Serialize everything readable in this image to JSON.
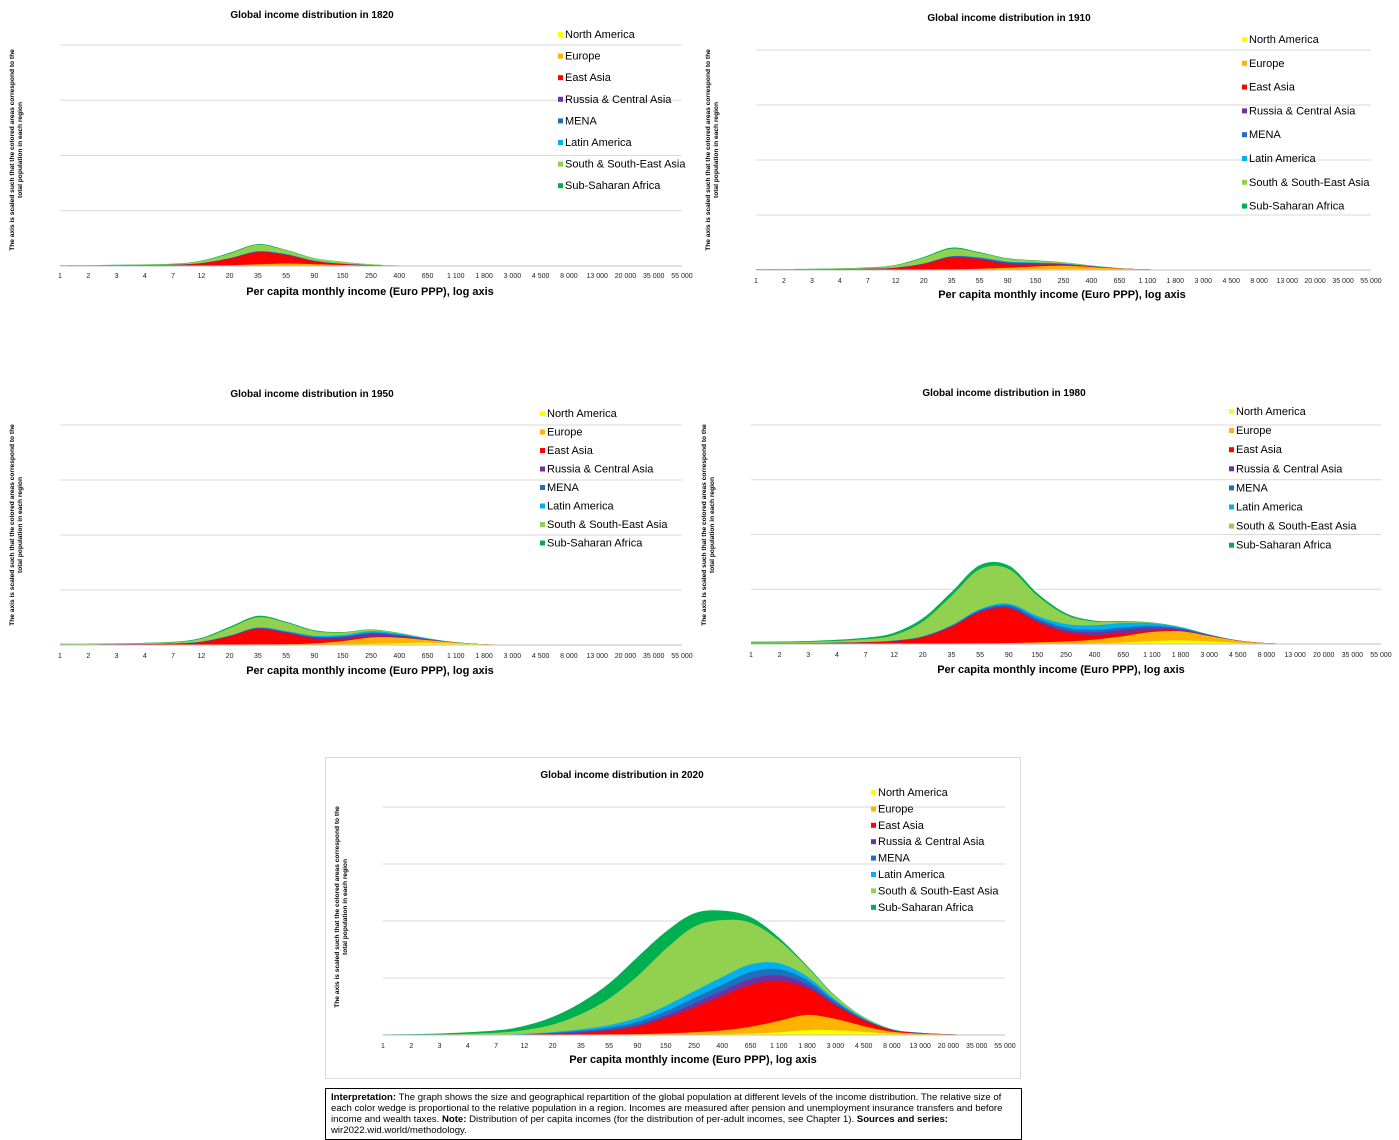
{
  "colors": {
    "North America": "#ffff00",
    "Europe": "#ffb300",
    "East Asia": "#ff0000",
    "Russia & Central Asia": "#7030a0",
    "MENA": "#1f6fbf",
    "Latin America": "#00b0f0",
    "South & South-East Asia": "#92d050",
    "Sub-Saharan Africa": "#00b050"
  },
  "legend": [
    "North America",
    "Europe",
    "East Asia",
    "Russia & Central Asia",
    "MENA",
    "Latin America",
    "South & South-East Asia",
    "Sub-Saharan Africa"
  ],
  "common": {
    "ylabel_line1": "The axis is scaled such that the colored areas correspond to the",
    "ylabel_line2": "total population in each region",
    "xlabel": "Per capita monthly income (Euro PPP), log axis",
    "ticks": [
      "1",
      "2",
      "3",
      "4",
      "7",
      "12",
      "20",
      "35",
      "55",
      "90",
      "150",
      "250",
      "400",
      "650",
      "1 100",
      "1 800",
      "3 000",
      "4 500",
      "8 000",
      "13 000",
      "20 000",
      "35 000",
      "55 000"
    ]
  },
  "note": {
    "interp_label": "Interpretation:",
    "interp_text": " The graph shows the size and geographical repartition of the global population at different levels of the income distribution. The relative size of each color wedge is proportional to the relative population in a region. Incomes are measured after pension and unemployment insurance transfers and before income and wealth taxes. ",
    "note_label": "Note:",
    "note_text": " Distribution of per capita incomes (for the distribution of per-adult incomes, see Chapter 1). ",
    "src_label": "Sources and series:",
    "src_text": " wir2022.wid.world/methodology."
  },
  "chart_data": [
    {
      "type": "area",
      "stacked": true,
      "title": "Global income distribution in 1820",
      "xlabel": "Per capita monthly income (Euro PPP), log axis",
      "x_scale": "log",
      "x": [
        1,
        3,
        7,
        12,
        20,
        35,
        55,
        90,
        150,
        250,
        400,
        650,
        1100
      ],
      "series": [
        {
          "name": "North America",
          "values": [
            0,
            0,
            0,
            0,
            0,
            0.1,
            0.15,
            0.1,
            0.05,
            0.02,
            0,
            0,
            0
          ]
        },
        {
          "name": "Europe",
          "values": [
            0.05,
            0.05,
            0.1,
            0.2,
            0.4,
            0.8,
            1.2,
            0.9,
            0.5,
            0.2,
            0.1,
            0.03,
            0
          ]
        },
        {
          "name": "East Asia",
          "values": [
            0.2,
            0.3,
            0.5,
            1.2,
            3.5,
            6.5,
            4.5,
            1.5,
            0.5,
            0.2,
            0.05,
            0,
            0
          ]
        },
        {
          "name": "Russia & Central Asia",
          "values": [
            0,
            0,
            0.05,
            0.1,
            0.2,
            0.3,
            0.3,
            0.2,
            0.1,
            0.05,
            0,
            0,
            0
          ]
        },
        {
          "name": "MENA",
          "values": [
            0,
            0,
            0.05,
            0.1,
            0.1,
            0.2,
            0.2,
            0.1,
            0.05,
            0.02,
            0,
            0,
            0
          ]
        },
        {
          "name": "Latin America",
          "values": [
            0,
            0,
            0.02,
            0.05,
            0.05,
            0.1,
            0.1,
            0.1,
            0.05,
            0.02,
            0,
            0,
            0
          ]
        },
        {
          "name": "South & South-East Asia",
          "values": [
            0.1,
            0.2,
            0.4,
            1.0,
            2.5,
            3.5,
            2.0,
            1.2,
            1.0,
            0.4,
            0.1,
            0,
            0
          ]
        },
        {
          "name": "Sub-Saharan Africa",
          "values": [
            0.05,
            0.1,
            0.2,
            0.3,
            0.4,
            0.4,
            0.3,
            0.2,
            0.1,
            0.05,
            0,
            0,
            0
          ]
        }
      ]
    },
    {
      "type": "area",
      "stacked": true,
      "title": "Global income distribution in 1910",
      "xlabel": "Per capita monthly income (Euro PPP), log axis",
      "x_scale": "log",
      "x": [
        1,
        3,
        7,
        12,
        20,
        35,
        55,
        90,
        150,
        250,
        400,
        650,
        1100,
        1800,
        3000
      ],
      "series": [
        {
          "name": "North America",
          "values": [
            0,
            0,
            0,
            0,
            0,
            0,
            0.05,
            0.2,
            0.4,
            0.5,
            0.4,
            0.2,
            0.1,
            0.03,
            0
          ]
        },
        {
          "name": "Europe",
          "values": [
            0.05,
            0.05,
            0.1,
            0.1,
            0.2,
            0.3,
            0.6,
            1.0,
            1.5,
            1.8,
            1.2,
            0.6,
            0.2,
            0.05,
            0
          ]
        },
        {
          "name": "East Asia",
          "values": [
            0.2,
            0.3,
            0.5,
            1.0,
            3.0,
            6.5,
            5.0,
            2.0,
            1.0,
            0.5,
            0.2,
            0.05,
            0,
            0,
            0
          ]
        },
        {
          "name": "Russia & Central Asia",
          "values": [
            0,
            0,
            0.05,
            0.1,
            0.2,
            0.4,
            0.6,
            0.8,
            0.7,
            0.4,
            0.2,
            0.05,
            0,
            0,
            0
          ]
        },
        {
          "name": "MENA",
          "values": [
            0,
            0,
            0.05,
            0.05,
            0.1,
            0.2,
            0.3,
            0.3,
            0.2,
            0.1,
            0.05,
            0,
            0,
            0,
            0
          ]
        },
        {
          "name": "Latin America",
          "values": [
            0,
            0,
            0.02,
            0.05,
            0.1,
            0.2,
            0.3,
            0.3,
            0.3,
            0.2,
            0.1,
            0.05,
            0,
            0,
            0
          ]
        },
        {
          "name": "South & South-East Asia",
          "values": [
            0.1,
            0.2,
            0.5,
            1.2,
            3.0,
            4.0,
            2.5,
            1.5,
            1.0,
            0.6,
            0.3,
            0.1,
            0,
            0,
            0
          ]
        },
        {
          "name": "Sub-Saharan Africa",
          "values": [
            0.1,
            0.1,
            0.2,
            0.3,
            0.5,
            0.6,
            0.4,
            0.3,
            0.2,
            0.1,
            0.05,
            0,
            0,
            0,
            0
          ]
        }
      ]
    },
    {
      "type": "area",
      "stacked": true,
      "title": "Global income distribution in 1950",
      "xlabel": "Per capita monthly income (Euro PPP), log axis",
      "x_scale": "log",
      "x": [
        1,
        3,
        7,
        12,
        20,
        35,
        55,
        90,
        150,
        250,
        400,
        650,
        1100,
        1800,
        3000,
        4500
      ],
      "series": [
        {
          "name": "North America",
          "values": [
            0,
            0,
            0,
            0,
            0,
            0,
            0,
            0.1,
            0.3,
            0.6,
            1.0,
            1.2,
            0.8,
            0.3,
            0.1,
            0
          ]
        },
        {
          "name": "Europe",
          "values": [
            0.05,
            0.05,
            0.1,
            0.1,
            0.2,
            0.3,
            0.4,
            0.8,
            1.8,
            3.5,
            3.0,
            1.5,
            0.5,
            0.1,
            0,
            0
          ]
        },
        {
          "name": "East Asia",
          "values": [
            0.2,
            0.3,
            0.6,
            1.5,
            4.5,
            8.5,
            6.0,
            2.5,
            1.0,
            0.5,
            0.2,
            0.05,
            0,
            0,
            0,
            0
          ]
        },
        {
          "name": "Russia & Central Asia",
          "values": [
            0,
            0,
            0.05,
            0.1,
            0.2,
            0.3,
            0.5,
            0.8,
            1.2,
            1.6,
            1.0,
            0.4,
            0.1,
            0,
            0,
            0
          ]
        },
        {
          "name": "MENA",
          "values": [
            0,
            0,
            0.05,
            0.1,
            0.1,
            0.2,
            0.3,
            0.3,
            0.4,
            0.5,
            0.3,
            0.1,
            0,
            0,
            0,
            0
          ]
        },
        {
          "name": "Latin America",
          "values": [
            0,
            0,
            0.05,
            0.1,
            0.2,
            0.3,
            0.4,
            0.6,
            0.8,
            0.9,
            0.6,
            0.3,
            0.1,
            0,
            0,
            0
          ]
        },
        {
          "name": "South & South-East Asia",
          "values": [
            0.2,
            0.3,
            0.6,
            1.5,
            4.0,
            5.5,
            4.5,
            2.5,
            1.3,
            0.7,
            0.4,
            0.1,
            0,
            0,
            0,
            0
          ]
        },
        {
          "name": "Sub-Saharan Africa",
          "values": [
            0.2,
            0.2,
            0.3,
            0.5,
            0.7,
            0.8,
            0.6,
            0.5,
            0.3,
            0.2,
            0.1,
            0.05,
            0,
            0,
            0,
            0
          ]
        }
      ]
    },
    {
      "type": "area",
      "stacked": true,
      "title": "Global income distribution in 1980",
      "xlabel": "Per capita monthly income (Euro PPP), log axis",
      "x_scale": "log",
      "x": [
        1,
        3,
        7,
        12,
        20,
        35,
        55,
        90,
        150,
        250,
        400,
        650,
        1100,
        1800,
        3000,
        4500,
        8000,
        13000,
        20000
      ],
      "series": [
        {
          "name": "North America",
          "values": [
            0,
            0,
            0,
            0,
            0,
            0,
            0,
            0,
            0.1,
            0.2,
            0.4,
            0.8,
            1.6,
            2.0,
            1.4,
            0.6,
            0.2,
            0.05,
            0
          ]
        },
        {
          "name": "Europe",
          "values": [
            0.05,
            0.05,
            0.1,
            0.1,
            0.2,
            0.3,
            0.4,
            0.5,
            0.8,
            1.2,
            2.0,
            3.5,
            5.0,
            5.0,
            3.0,
            1.2,
            0.3,
            0.1,
            0
          ]
        },
        {
          "name": "East Asia",
          "values": [
            0.3,
            0.4,
            0.8,
            1.5,
            3.5,
            9.0,
            17.0,
            19.0,
            11.0,
            5.0,
            2.5,
            1.5,
            0.7,
            0.3,
            0.1,
            0,
            0,
            0,
            0
          ]
        },
        {
          "name": "Russia & Central Asia",
          "values": [
            0,
            0,
            0.05,
            0.1,
            0.2,
            0.3,
            0.5,
            0.8,
            1.0,
            1.2,
            1.6,
            2.0,
            1.6,
            0.8,
            0.3,
            0.1,
            0,
            0,
            0
          ]
        },
        {
          "name": "MENA",
          "values": [
            0,
            0,
            0.05,
            0.1,
            0.2,
            0.4,
            0.7,
            1.0,
            1.2,
            1.4,
            1.4,
            1.3,
            1.0,
            0.5,
            0.2,
            0.05,
            0,
            0,
            0
          ]
        },
        {
          "name": "Latin America",
          "values": [
            0,
            0,
            0.05,
            0.1,
            0.2,
            0.3,
            0.5,
            0.8,
            1.3,
            1.9,
            2.4,
            2.4,
            1.5,
            0.6,
            0.2,
            0.05,
            0,
            0,
            0
          ]
        },
        {
          "name": "South & South-East Asia",
          "values": [
            0.5,
            0.7,
            1.5,
            3.0,
            8.0,
            16.0,
            22.0,
            19.0,
            11.0,
            5.0,
            2.0,
            0.8,
            0.3,
            0.1,
            0,
            0,
            0,
            0,
            0
          ]
        },
        {
          "name": "Sub-Saharan Africa",
          "values": [
            0.4,
            0.5,
            0.9,
            1.3,
            1.8,
            2.2,
            2.2,
            1.9,
            1.4,
            0.9,
            0.5,
            0.3,
            0.15,
            0.05,
            0,
            0,
            0,
            0,
            0
          ]
        }
      ]
    },
    {
      "type": "area",
      "stacked": true,
      "title": "Global income distribution in 2020",
      "xlabel": "Per capita monthly income (Euro PPP), log axis",
      "x_scale": "log",
      "x": [
        1,
        3,
        7,
        12,
        20,
        35,
        55,
        90,
        150,
        250,
        400,
        650,
        1100,
        1800,
        3000,
        4500,
        8000,
        13000,
        20000,
        35000,
        55000
      ],
      "series": [
        {
          "name": "North America",
          "values": [
            0,
            0,
            0,
            0,
            0,
            0,
            0,
            0,
            0.1,
            0.2,
            0.4,
            0.8,
            1.4,
            2.6,
            2.5,
            1.7,
            0.6,
            0.2,
            0.1,
            0.05,
            0
          ]
        },
        {
          "name": "Europe",
          "values": [
            0,
            0,
            0,
            0,
            0.1,
            0.2,
            0.3,
            0.4,
            0.7,
            1.2,
            2.0,
            3.5,
            6.0,
            8.0,
            6.0,
            3.0,
            1.1,
            0.5,
            0.2,
            0.05,
            0
          ]
        },
        {
          "name": "East Asia",
          "values": [
            0,
            0,
            0.1,
            0.2,
            0.5,
            1.0,
            2.0,
            4.0,
            8.0,
            13.0,
            18.0,
            22.0,
            21.0,
            14.0,
            7.0,
            3.0,
            0.9,
            0.3,
            0.1,
            0,
            0
          ]
        },
        {
          "name": "Russia & Central Asia",
          "values": [
            0,
            0,
            0,
            0.1,
            0.2,
            0.4,
            0.6,
            1.0,
            1.5,
            2.2,
            2.8,
            3.2,
            3.0,
            2.0,
            1.0,
            0.4,
            0.1,
            0.05,
            0,
            0,
            0
          ]
        },
        {
          "name": "MENA",
          "values": [
            0,
            0,
            0.05,
            0.1,
            0.3,
            0.6,
            1.0,
            1.6,
            2.2,
            2.8,
            3.3,
            3.6,
            3.2,
            2.2,
            1.1,
            0.4,
            0.1,
            0.05,
            0,
            0,
            0
          ]
        },
        {
          "name": "Latin America",
          "values": [
            0,
            0,
            0.05,
            0.2,
            0.4,
            0.8,
            1.3,
            2.0,
            2.8,
            3.6,
            4.0,
            4.0,
            3.2,
            2.0,
            1.0,
            0.4,
            0.1,
            0.05,
            0,
            0,
            0
          ]
        },
        {
          "name": "South & South-East Asia",
          "values": [
            0.1,
            0.3,
            1.0,
            2.0,
            4.0,
            8.0,
            14.0,
            22.0,
            30.0,
            34.0,
            30.0,
            22.0,
            12.0,
            5.0,
            1.8,
            0.6,
            0.2,
            0.05,
            0,
            0,
            0
          ]
        },
        {
          "name": "Sub-Saharan Africa",
          "values": [
            0.2,
            0.5,
            1.2,
            2.2,
            4.0,
            6.0,
            8.0,
            10.0,
            9.0,
            7.0,
            5.0,
            3.0,
            1.5,
            0.7,
            0.3,
            0.1,
            0.05,
            0,
            0,
            0,
            0
          ]
        }
      ]
    }
  ]
}
